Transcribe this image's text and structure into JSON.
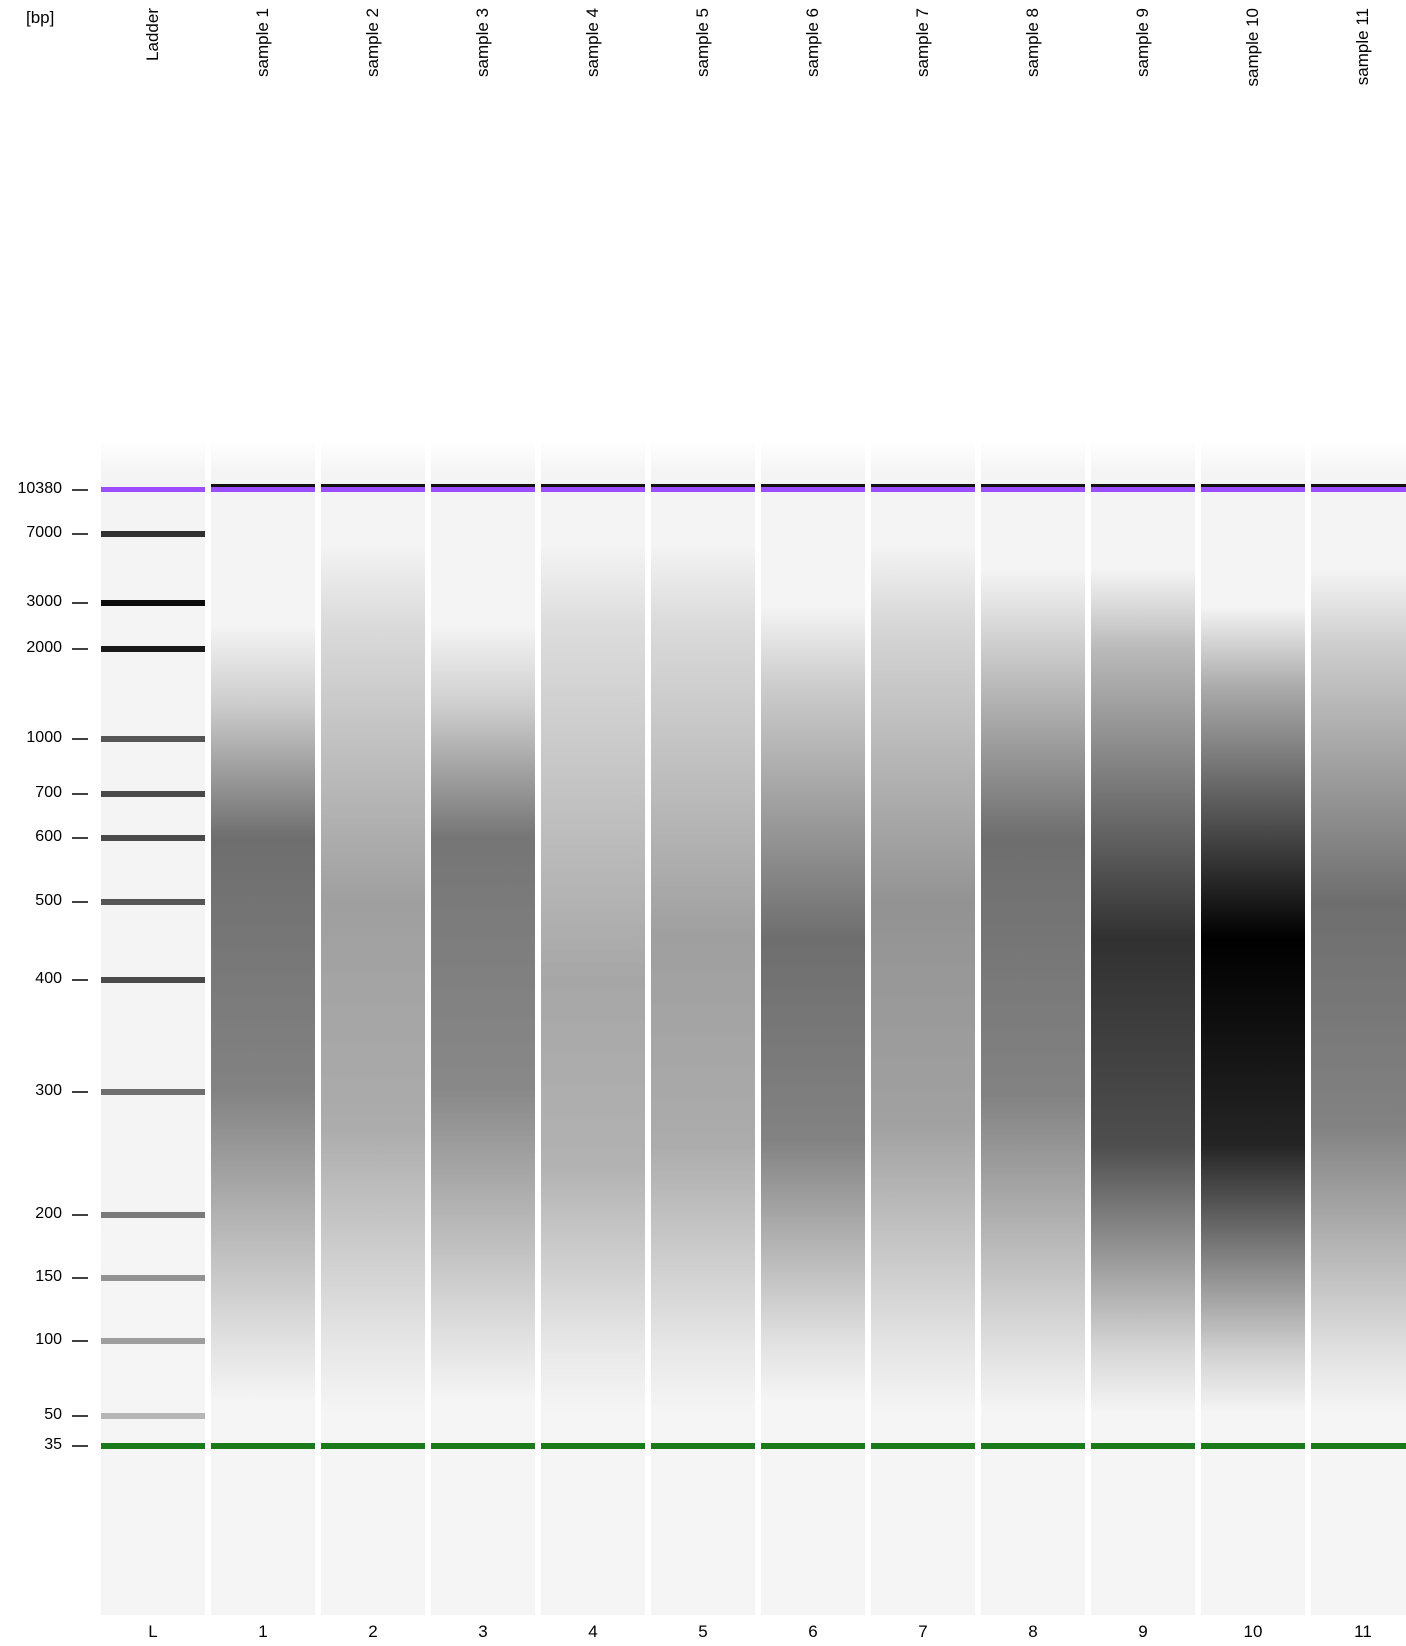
{
  "unit_label": "[bp]",
  "chart_data": {
    "type": "gel-electrophoresis",
    "y_unit": "bp",
    "y_ticks": [
      10380,
      7000,
      3000,
      2000,
      1000,
      700,
      600,
      500,
      400,
      300,
      200,
      150,
      100,
      50,
      35
    ],
    "upper_marker_bp": 10380,
    "lower_marker_bp": 35,
    "marker_colors": {
      "upper": "#9b4dff",
      "lower": "#1a7a1a"
    },
    "lanes": [
      {
        "title": "Ladder",
        "number": "L",
        "type": "ladder",
        "bands": [
          {
            "bp": 7000,
            "intensity": 0.85
          },
          {
            "bp": 3000,
            "intensity": 1.0
          },
          {
            "bp": 2000,
            "intensity": 0.95
          },
          {
            "bp": 1000,
            "intensity": 0.7
          },
          {
            "bp": 700,
            "intensity": 0.75
          },
          {
            "bp": 600,
            "intensity": 0.75
          },
          {
            "bp": 500,
            "intensity": 0.7
          },
          {
            "bp": 400,
            "intensity": 0.75
          },
          {
            "bp": 300,
            "intensity": 0.6
          },
          {
            "bp": 200,
            "intensity": 0.55
          },
          {
            "bp": 150,
            "intensity": 0.45
          },
          {
            "bp": 100,
            "intensity": 0.4
          },
          {
            "bp": 50,
            "intensity": 0.3
          }
        ]
      },
      {
        "title": "sample 1",
        "number": "1",
        "smear": {
          "peak_bp": 600,
          "low_bp": 100,
          "high_bp": 1300,
          "intensity": 0.55
        }
      },
      {
        "title": "sample 2",
        "number": "2",
        "smear": {
          "peak_bp": 500,
          "low_bp": 90,
          "high_bp": 2500,
          "intensity": 0.35
        }
      },
      {
        "title": "sample 3",
        "number": "3",
        "smear": {
          "peak_bp": 600,
          "low_bp": 100,
          "high_bp": 1300,
          "intensity": 0.52
        }
      },
      {
        "title": "sample 4",
        "number": "4",
        "smear": {
          "peak_bp": 400,
          "low_bp": 90,
          "high_bp": 2500,
          "intensity": 0.32
        }
      },
      {
        "title": "sample 5",
        "number": "5",
        "smear": {
          "peak_bp": 450,
          "low_bp": 90,
          "high_bp": 2500,
          "intensity": 0.35
        }
      },
      {
        "title": "sample 6",
        "number": "6",
        "smear": {
          "peak_bp": 450,
          "low_bp": 100,
          "high_bp": 1500,
          "intensity": 0.55
        }
      },
      {
        "title": "sample 7",
        "number": "7",
        "smear": {
          "peak_bp": 500,
          "low_bp": 90,
          "high_bp": 2500,
          "intensity": 0.4
        }
      },
      {
        "title": "sample 8",
        "number": "8",
        "smear": {
          "peak_bp": 600,
          "low_bp": 90,
          "high_bp": 2000,
          "intensity": 0.55
        }
      },
      {
        "title": "sample 9",
        "number": "9",
        "smear": {
          "peak_bp": 450,
          "low_bp": 90,
          "high_bp": 2000,
          "intensity": 0.8
        }
      },
      {
        "title": "sample 10",
        "number": "10",
        "smear": {
          "peak_bp": 450,
          "low_bp": 90,
          "high_bp": 1500,
          "intensity": 1.0
        }
      },
      {
        "title": "sample 11",
        "number": "11",
        "smear": {
          "peak_bp": 500,
          "low_bp": 90,
          "high_bp": 2000,
          "intensity": 0.55
        }
      }
    ]
  }
}
